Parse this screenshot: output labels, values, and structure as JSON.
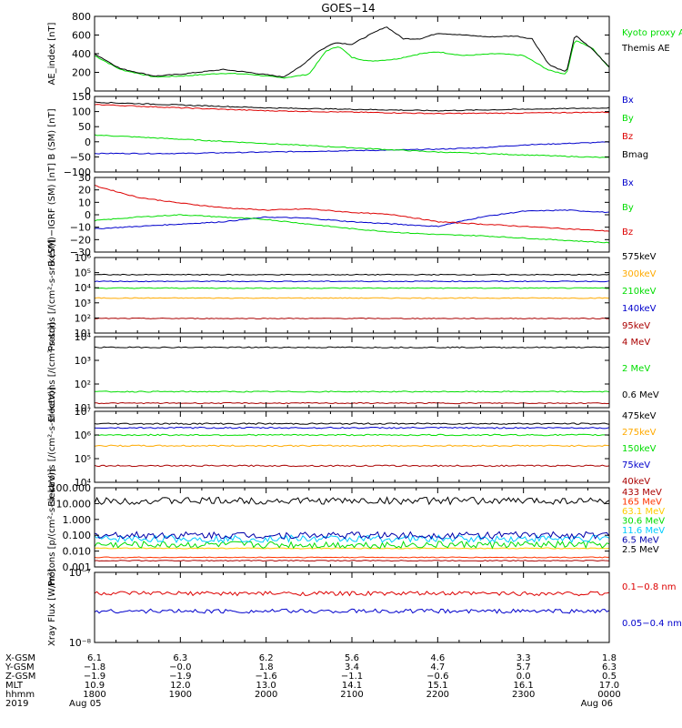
{
  "title": "GOES−14",
  "chart_data": [
    {
      "type": "line",
      "ylabel": "AE_index [nT]",
      "yticks": [
        "800",
        "600",
        "400",
        "200",
        "0"
      ],
      "ylim": [
        0,
        800
      ],
      "scale": "linear",
      "series": [
        {
          "name": "Kyoto proxy AE",
          "color": "#00dd00",
          "x": [
            18.0,
            18.3,
            18.7,
            19.0,
            19.5,
            19.8,
            20.2,
            20.5,
            20.7,
            20.85,
            21.0,
            21.2,
            21.5,
            21.8,
            22.0,
            22.3,
            22.7,
            23.0,
            23.3,
            23.5,
            23.6,
            23.8,
            24.0
          ],
          "y": [
            380,
            230,
            150,
            160,
            190,
            180,
            140,
            180,
            430,
            480,
            360,
            320,
            340,
            400,
            420,
            380,
            400,
            380,
            220,
            180,
            550,
            460,
            250
          ]
        },
        {
          "name": "Themis AE",
          "color": "#000000",
          "x": [
            18.0,
            18.3,
            18.7,
            19.0,
            19.5,
            19.8,
            20.2,
            20.4,
            20.6,
            20.8,
            21.0,
            21.2,
            21.4,
            21.6,
            21.8,
            22.0,
            22.3,
            22.6,
            22.9,
            23.1,
            23.3,
            23.5,
            23.6,
            23.8,
            24.0
          ],
          "y": [
            400,
            240,
            160,
            180,
            230,
            200,
            150,
            260,
            420,
            520,
            500,
            600,
            690,
            560,
            560,
            620,
            600,
            580,
            590,
            560,
            280,
            200,
            600,
            450,
            260
          ]
        }
      ]
    },
    {
      "type": "line",
      "ylabel": "B (SM) [nT]",
      "yticks": [
        "150",
        "100",
        "50",
        "0",
        "−50",
        "−100"
      ],
      "ylim": [
        -115,
        150
      ],
      "scale": "linear",
      "series": [
        {
          "name": "Bx",
          "color": "#0000cc",
          "x": [
            18.0,
            19.0,
            20.0,
            21.0,
            21.5,
            22.0,
            22.5,
            23.0,
            23.5,
            24.0
          ],
          "y": [
            -50,
            -50,
            -45,
            -40,
            -38,
            -35,
            -30,
            -20,
            -15,
            -10
          ]
        },
        {
          "name": "By",
          "color": "#00dd00",
          "x": [
            18.0,
            19.0,
            20.0,
            21.0,
            22.0,
            23.0,
            24.0
          ],
          "y": [
            15,
            0,
            -15,
            -30,
            -45,
            -55,
            -65
          ]
        },
        {
          "name": "Bz",
          "color": "#dd0000",
          "x": [
            18.0,
            19.0,
            20.0,
            21.0,
            22.0,
            23.0,
            24.0
          ],
          "y": [
            122,
            110,
            100,
            95,
            90,
            92,
            95
          ]
        },
        {
          "name": "Bmag",
          "color": "#000000",
          "x": [
            18.0,
            19.0,
            20.0,
            21.0,
            22.0,
            23.0,
            24.0
          ],
          "y": [
            130,
            120,
            110,
            105,
            100,
            105,
            110
          ]
        }
      ]
    },
    {
      "type": "line",
      "ylabel": "B (SM)−IGRF (SM) [nT]",
      "yticks": [
        "30",
        "20",
        "10",
        "0",
        "−10",
        "−20",
        "−30"
      ],
      "ylim": [
        -32,
        32
      ],
      "scale": "linear",
      "series": [
        {
          "name": "Bx",
          "color": "#0000cc",
          "x": [
            18.0,
            18.5,
            19.0,
            19.5,
            20.0,
            20.5,
            21.0,
            21.5,
            22.0,
            22.5,
            23.0,
            23.5,
            24.0
          ],
          "y": [
            -12,
            -10,
            -8,
            -6,
            -2,
            -3,
            -6,
            -8,
            -10,
            -2,
            3,
            4,
            2
          ]
        },
        {
          "name": "By",
          "color": "#00dd00",
          "x": [
            18.0,
            18.5,
            19.0,
            19.5,
            20.0,
            20.5,
            21.0,
            21.5,
            22.0,
            22.5,
            23.0,
            23.5,
            24.0
          ],
          "y": [
            -5,
            -2,
            0,
            -2,
            -4,
            -8,
            -12,
            -15,
            -17,
            -18,
            -20,
            -22,
            -24
          ]
        },
        {
          "name": "Bz",
          "color": "#dd0000",
          "x": [
            18.0,
            18.5,
            19.0,
            19.5,
            20.0,
            20.5,
            21.0,
            21.5,
            22.0,
            22.5,
            23.0,
            23.5,
            24.0
          ],
          "y": [
            25,
            15,
            10,
            6,
            4,
            5,
            2,
            0,
            -6,
            -8,
            -10,
            -12,
            -14
          ]
        }
      ]
    },
    {
      "type": "line",
      "ylabel": "Protons [/(cm²‑s‑sr‑keV)]",
      "yticks": [
        "10⁶",
        "10⁵",
        "10⁴",
        "10³",
        "10²",
        "10¹"
      ],
      "ylim": [
        10,
        1500000
      ],
      "scale": "log",
      "series": [
        {
          "name": "575keV",
          "color": "#000000",
          "x": [
            18.0,
            24.0
          ],
          "y": [
            100000,
            100000
          ]
        },
        {
          "name": "300keV",
          "color": "#ffaa00",
          "x": [
            18.0,
            24.0
          ],
          "y": [
            2500,
            2500
          ]
        },
        {
          "name": "210keV",
          "color": "#00dd00",
          "x": [
            18.0,
            24.0
          ],
          "y": [
            12000,
            12000
          ]
        },
        {
          "name": "140keV",
          "color": "#0000cc",
          "x": [
            18.0,
            24.0
          ],
          "y": [
            35000,
            35000
          ]
        },
        {
          "name": "95keV",
          "color": "#aa0000",
          "x": [
            18.0,
            24.0
          ],
          "y": [
            100,
            100
          ]
        }
      ]
    },
    {
      "type": "line",
      "ylabel": "Electrons [/(cm²‑s‑sr)]",
      "yticks": [
        "10⁴",
        "10³",
        "10²",
        "10¹"
      ],
      "ylim": [
        10,
        100000
      ],
      "scale": "log",
      "series": [
        {
          "name": "4 MeV",
          "color": "#aa0000",
          "x": [
            18.0,
            24.0
          ],
          "y": [
            18,
            18
          ]
        },
        {
          "name": "2 MeV",
          "color": "#00dd00",
          "x": [
            18.0,
            24.0
          ],
          "y": [
            80,
            80
          ]
        },
        {
          "name": "0.6 MeV",
          "color": "#000000",
          "x": [
            18.0,
            24.0
          ],
          "y": [
            25000,
            25000
          ]
        }
      ]
    },
    {
      "type": "line",
      "ylabel": "Electrons [/(cm²‑s‑sr‑keV)]",
      "yticks": [
        "10⁷",
        "10⁶",
        "10⁵",
        "10⁴"
      ],
      "ylim": [
        10000,
        10000000
      ],
      "scale": "log",
      "series": [
        {
          "name": "475keV",
          "color": "#000000",
          "x": [
            18.0,
            24.0
          ],
          "y": [
            3000000,
            3000000
          ]
        },
        {
          "name": "275keV",
          "color": "#ffaa00",
          "x": [
            18.0,
            24.0
          ],
          "y": [
            350000,
            350000
          ]
        },
        {
          "name": "150keV",
          "color": "#00dd00",
          "x": [
            18.0,
            24.0
          ],
          "y": [
            1000000,
            1000000
          ]
        },
        {
          "name": "75keV",
          "color": "#0000cc",
          "x": [
            18.0,
            24.0
          ],
          "y": [
            2000000,
            2000000
          ]
        },
        {
          "name": "40keV",
          "color": "#aa0000",
          "x": [
            18.0,
            24.0
          ],
          "y": [
            50000,
            50000
          ]
        }
      ]
    },
    {
      "type": "line",
      "ylabel": "Protons [p/(cm²‑s‑sr‑keV)]",
      "yticks": [
        "100.000",
        "10.000",
        "1.000",
        "0.100",
        "0.010",
        "0.001"
      ],
      "ylim": [
        0.001,
        100
      ],
      "scale": "log",
      "series": [
        {
          "name": "433 MeV",
          "color": "#aa0000",
          "x": [
            18.0,
            24.0
          ],
          "y": [
            0.0025,
            0.0025
          ]
        },
        {
          "name": "165 MeV",
          "color": "#ff3300",
          "x": [
            18.0,
            24.0
          ],
          "y": [
            0.004,
            0.004
          ]
        },
        {
          "name": "63.1 MeV",
          "color": "#ffcc00",
          "x": [
            18.0,
            24.0
          ],
          "y": [
            0.015,
            0.015
          ]
        },
        {
          "name": "30.6 MeV",
          "color": "#00dd00",
          "x": [
            18.0,
            24.0
          ],
          "y": [
            0.025,
            0.025
          ]
        },
        {
          "name": "11.6 MeV",
          "color": "#00ccff",
          "x": [
            18.0,
            24.0
          ],
          "y": [
            0.06,
            0.06
          ]
        },
        {
          "name": "6.5 MeV",
          "color": "#0000aa",
          "x": [
            18.0,
            24.0
          ],
          "y": [
            0.1,
            0.1
          ]
        },
        {
          "name": "2.5 MeV",
          "color": "#000000",
          "x": [
            18.0,
            24.0
          ],
          "y": [
            15,
            15
          ]
        }
      ]
    },
    {
      "type": "line",
      "ylabel": "Xray Flux [W/m²]",
      "yticks": [
        "10⁻⁷",
        "10⁻⁸"
      ],
      "ylim": [
        1e-08,
        1e-07
      ],
      "scale": "log",
      "series": [
        {
          "name": "0.1−0.8 nm",
          "color": "#dd0000",
          "x": [
            18.0,
            24.0
          ],
          "y": [
            5e-08,
            5e-08
          ]
        },
        {
          "name": "0.05−0.4 nm",
          "color": "#0000cc",
          "x": [
            18.0,
            24.0
          ],
          "y": [
            2.8e-08,
            2.8e-08
          ]
        }
      ]
    }
  ],
  "footer": {
    "row_labels": [
      "X-GSM",
      "Y-GSM",
      "Z-GSM",
      "MLT",
      "hhmm",
      "2019"
    ],
    "columns": [
      {
        "x": 18.0,
        "values": [
          "6.1",
          "−1.8",
          "−1.9",
          "10.9",
          "1800",
          "Aug 05"
        ]
      },
      {
        "x": 19.0,
        "values": [
          "6.3",
          "−0.0",
          "−1.9",
          "12.0",
          "1900",
          ""
        ]
      },
      {
        "x": 20.0,
        "values": [
          "6.2",
          "1.8",
          "−1.6",
          "13.0",
          "2000",
          ""
        ]
      },
      {
        "x": 21.0,
        "values": [
          "5.6",
          "3.4",
          "−1.1",
          "14.1",
          "2100",
          ""
        ]
      },
      {
        "x": 22.0,
        "values": [
          "4.6",
          "4.7",
          "−0.6",
          "15.1",
          "2200",
          ""
        ]
      },
      {
        "x": 23.0,
        "values": [
          "3.3",
          "5.7",
          "0.0",
          "16.1",
          "2300",
          ""
        ]
      },
      {
        "x": 24.0,
        "values": [
          "1.8",
          "6.3",
          "0.5",
          "17.0",
          "0000",
          "Aug 06"
        ]
      }
    ]
  }
}
